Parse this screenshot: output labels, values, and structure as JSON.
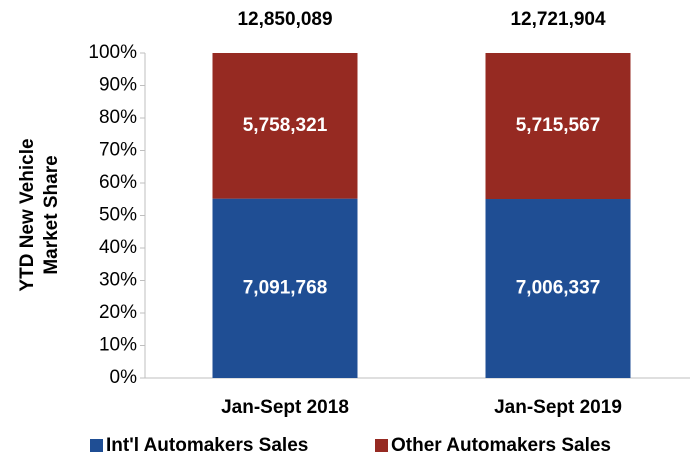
{
  "chart_data": {
    "type": "bar",
    "stacking": "percent",
    "ylabel": [
      "YTD New Vehicle",
      "Market Share"
    ],
    "categories": [
      "Jan-Sept 2018",
      "Jan-Sept 2019"
    ],
    "series": [
      {
        "name": "Int'l Automakers Sales",
        "color": "#1f4e94",
        "values": [
          7091768,
          7006337
        ],
        "value_labels": [
          "7,091,768",
          "7,006,337"
        ]
      },
      {
        "name": "Other Automakers Sales",
        "color": "#962a22",
        "values": [
          5758321,
          5715567
        ],
        "value_labels": [
          "5,758,321",
          "5,715,567"
        ]
      }
    ],
    "totals": [
      12850089,
      12721904
    ],
    "total_labels": [
      "12,850,089",
      "12,721,904"
    ],
    "ylim": [
      0,
      100
    ],
    "yticks": [
      {
        "value": 0,
        "label": "0%"
      },
      {
        "value": 10,
        "label": "10%"
      },
      {
        "value": 20,
        "label": "20%"
      },
      {
        "value": 30,
        "label": "30%"
      },
      {
        "value": 40,
        "label": "40%"
      },
      {
        "value": 50,
        "label": "50%"
      },
      {
        "value": 60,
        "label": "60%"
      },
      {
        "value": 70,
        "label": "70%"
      },
      {
        "value": 80,
        "label": "80%"
      },
      {
        "value": 90,
        "label": "90%"
      },
      {
        "value": 100,
        "label": "100%"
      }
    ],
    "grid": false,
    "legend": "bottom"
  }
}
